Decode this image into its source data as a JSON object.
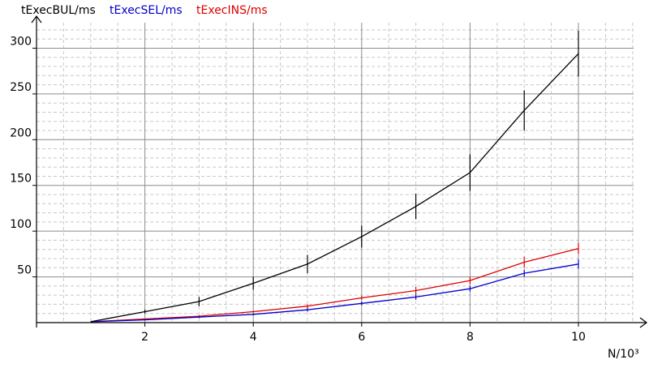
{
  "chart_data": {
    "type": "line",
    "title": "",
    "xlabel": "N/10³",
    "ylabel": "",
    "xlim": [
      0,
      11.5
    ],
    "ylim": [
      0,
      320
    ],
    "x_ticks": [
      "2",
      "4",
      "6",
      "8",
      "10"
    ],
    "y_ticks": [
      "50",
      "100",
      "150",
      "200",
      "250",
      "300"
    ],
    "grid": true,
    "legend_position": "top",
    "colors": {
      "bul": "#000000",
      "sel": "#0000cc",
      "ins": "#dd0000",
      "major_grid": "#8c8c8c",
      "minor_grid": "#c8c8c8"
    },
    "x": [
      1,
      2,
      3,
      4,
      5,
      6,
      7,
      8,
      9,
      10
    ],
    "series": [
      {
        "key": "bul",
        "name": "tExecBUL/ms",
        "values": [
          1,
          12,
          23,
          43,
          64,
          94,
          127,
          164,
          232,
          294
        ],
        "errors": [
          0,
          2,
          5,
          7,
          10,
          12,
          14,
          20,
          22,
          25
        ]
      },
      {
        "key": "sel",
        "name": "tExecSEL/ms",
        "values": [
          1,
          3,
          6,
          9,
          14,
          21,
          28,
          37,
          54,
          64
        ],
        "errors": [
          0,
          0,
          1,
          1,
          2,
          2,
          3,
          3,
          4,
          5
        ]
      },
      {
        "key": "ins",
        "name": "tExecINS/ms",
        "values": [
          1,
          4,
          7,
          12,
          18,
          27,
          35,
          46,
          66,
          81
        ],
        "errors": [
          0,
          0,
          1,
          1,
          2,
          2,
          4,
          4,
          6,
          6
        ]
      }
    ]
  }
}
